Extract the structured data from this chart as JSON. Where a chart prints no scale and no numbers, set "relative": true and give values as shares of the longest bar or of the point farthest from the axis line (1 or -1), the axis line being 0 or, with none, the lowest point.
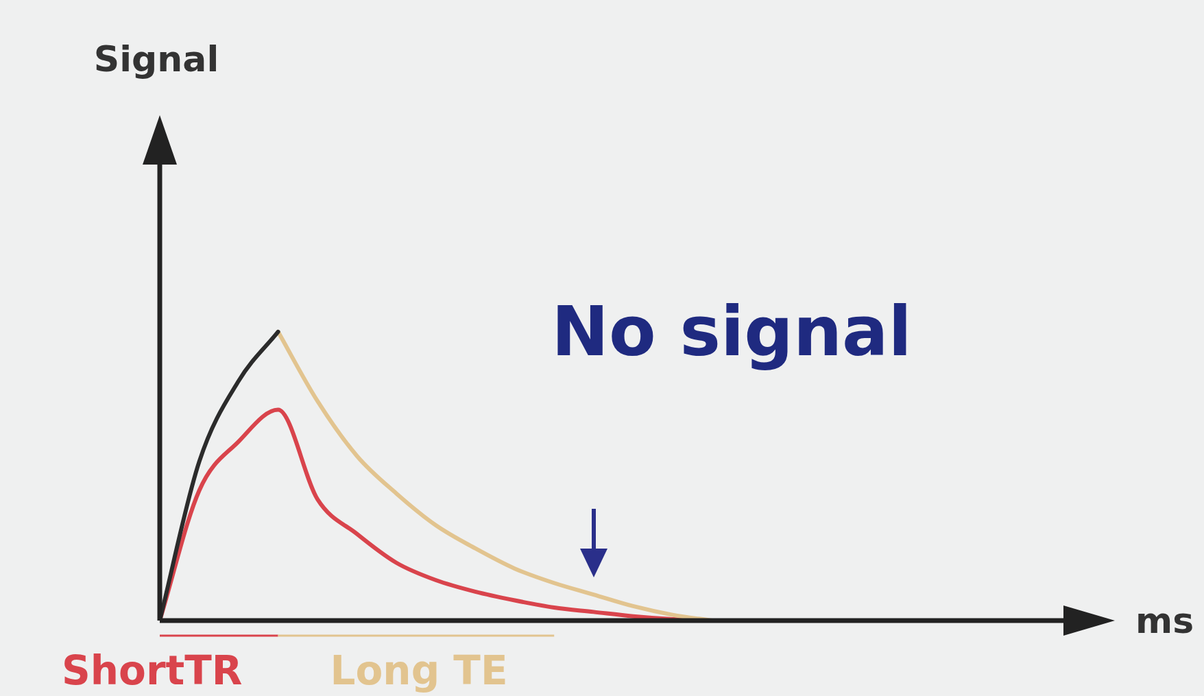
{
  "chart_data": {
    "type": "line",
    "relative": true,
    "xlabel": "ms",
    "categories": [
      null,
      null,
      null,
      null,
      null,
      null,
      null,
      null,
      null,
      null,
      null,
      null,
      null,
      null,
      null,
      null,
      null,
      null,
      null,
      null,
      null,
      null,
      null,
      null
    ],
    "series": [
      {
        "color": "#2b2b2b",
        "values": [
          0,
          0.55,
          0.83,
          1,
          null,
          null,
          null,
          null,
          null,
          null,
          null,
          null,
          null,
          null,
          null,
          null,
          null,
          null,
          null,
          null,
          null,
          null,
          null,
          null
        ]
      },
      {
        "color": "#e2c48f",
        "values": [
          null,
          null,
          null,
          1,
          0.76,
          0.57,
          0.44,
          0.33,
          0.25,
          0.18,
          0.13,
          0.09,
          0.05,
          0.02,
          0,
          null,
          null,
          null,
          null,
          null,
          null,
          null,
          null,
          null
        ]
      },
      {
        "color": "#d9444c",
        "values": [
          0,
          0.45,
          0.62,
          0.73,
          0.42,
          0.3,
          0.2,
          0.14,
          0.1,
          0.07,
          0.045,
          0.03,
          0.015,
          0.005,
          0,
          null,
          null,
          null,
          null,
          null,
          null,
          null,
          null,
          null
        ]
      }
    ],
    "annotations": [
      "No signal",
      "ShortTR",
      "Long TE",
      "Signal"
    ],
    "marker": "none",
    "line_style": "solid",
    "legend": false
  }
}
